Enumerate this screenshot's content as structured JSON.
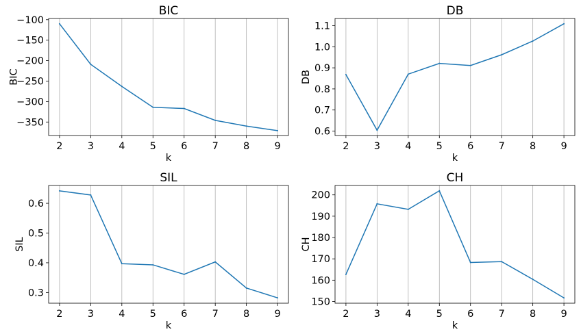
{
  "chart_data": [
    {
      "type": "line",
      "title": "BIC",
      "xlabel": "k",
      "ylabel": "BIC",
      "x": [
        2,
        3,
        4,
        5,
        6,
        7,
        8,
        9
      ],
      "values": [
        -110,
        -209,
        -263,
        -314,
        -317,
        -346,
        -360,
        -371
      ],
      "xlim": [
        1.65,
        9.35
      ],
      "ylim": [
        -383,
        -97
      ],
      "yticks": [
        -100,
        -150,
        -200,
        -250,
        -300,
        -350
      ],
      "yticklabels": [
        "−100",
        "−150",
        "−200",
        "−250",
        "−300",
        "−350"
      ],
      "grid": "x-axis vertical lines",
      "line_color": "#1f77b4"
    },
    {
      "type": "line",
      "title": "DB",
      "xlabel": "k",
      "ylabel": "DB",
      "x": [
        2,
        3,
        4,
        5,
        6,
        7,
        8,
        9
      ],
      "values": [
        0.868,
        0.604,
        0.87,
        0.921,
        0.911,
        0.962,
        1.027,
        1.109
      ],
      "xlim": [
        1.65,
        9.35
      ],
      "ylim": [
        0.579,
        1.134
      ],
      "yticks": [
        0.6,
        0.7,
        0.8,
        0.9,
        1.0,
        1.1
      ],
      "yticklabels": [
        "0.6",
        "0.7",
        "0.8",
        "0.9",
        "1.0",
        "1.1"
      ],
      "grid": "x-axis vertical lines",
      "line_color": "#1f77b4"
    },
    {
      "type": "line",
      "title": "SIL",
      "xlabel": "k",
      "ylabel": "SIL",
      "x": [
        2,
        3,
        4,
        5,
        6,
        7,
        8,
        9
      ],
      "values": [
        0.642,
        0.628,
        0.397,
        0.393,
        0.361,
        0.403,
        0.315,
        0.282
      ],
      "xlim": [
        1.65,
        9.35
      ],
      "ylim": [
        0.264,
        0.66
      ],
      "yticks": [
        0.3,
        0.4,
        0.5,
        0.6
      ],
      "yticklabels": [
        "0.3",
        "0.4",
        "0.5",
        "0.6"
      ],
      "grid": "x-axis vertical lines",
      "line_color": "#1f77b4"
    },
    {
      "type": "line",
      "title": "CH",
      "xlabel": "k",
      "ylabel": "CH",
      "x": [
        2,
        3,
        4,
        5,
        6,
        7,
        8,
        9
      ],
      "values": [
        162.7,
        195.8,
        193.2,
        201.9,
        168.3,
        168.7,
        160.4,
        151.7
      ],
      "xlim": [
        1.65,
        9.35
      ],
      "ylim": [
        149.2,
        204.4
      ],
      "yticks": [
        150,
        160,
        170,
        180,
        190,
        200
      ],
      "yticklabels": [
        "150",
        "160",
        "170",
        "180",
        "190",
        "200"
      ],
      "grid": "x-axis vertical lines",
      "line_color": "#1f77b4"
    }
  ]
}
